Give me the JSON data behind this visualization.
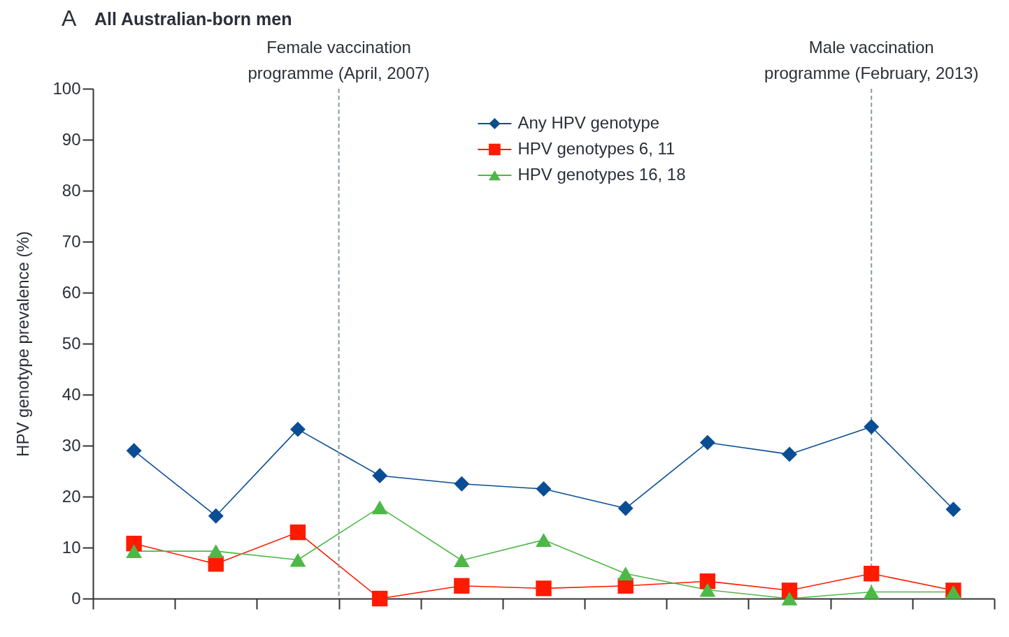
{
  "chart_data": {
    "type": "line",
    "title": "All Australian-born men",
    "annotations": [
      "A",
      "Female vaccination\nprogramme (April, 2007)",
      "Male vaccination\nprogramme (February, 2013)"
    ],
    "ylabel": "HPV genotype prevalence (%)",
    "categories": [
      null,
      null,
      null,
      null,
      null,
      null,
      null,
      null,
      null,
      null,
      null
    ],
    "series": [
      {
        "name": "Any HPV genotype",
        "color": "#0a4d94",
        "marker": "diamond",
        "values": [
          29.0,
          16.2,
          33.2,
          24.1,
          22.5,
          21.5,
          17.7,
          30.6,
          28.3,
          33.7,
          17.5
        ]
      },
      {
        "name": "HPV genotypes 6, 11",
        "color": "#ff1a00",
        "marker": "square",
        "values": [
          10.8,
          6.8,
          13.0,
          0,
          2.5,
          2.0,
          2.5,
          3.4,
          1.6,
          4.9,
          1.6
        ]
      },
      {
        "name": "HPV genotypes 16, 18",
        "color": "#4db847",
        "marker": "triangle",
        "values": [
          9.3,
          9.3,
          7.6,
          17.9,
          7.5,
          11.5,
          4.9,
          1.7,
          0,
          1.3,
          1.3
        ]
      }
    ],
    "ylim": [
      0,
      100
    ],
    "yticks": [
      0,
      10,
      20,
      30,
      40,
      50,
      60,
      70,
      80,
      90,
      100
    ],
    "legend": "top",
    "tick_labels": "y"
  }
}
